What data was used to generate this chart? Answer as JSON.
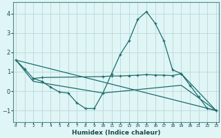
{
  "xlabel": "Humidex (Indice chaleur)",
  "bg_color": "#e0f5f5",
  "grid_color": "#b8d8d8",
  "line_color": "#1a6b6b",
  "line1_x": [
    0,
    1,
    2,
    3,
    4,
    5,
    6,
    7,
    8,
    9,
    10,
    11,
    12,
    13,
    14,
    15,
    16,
    17,
    18,
    19,
    20,
    21,
    22,
    23
  ],
  "line1_y": [
    1.6,
    1.15,
    0.65,
    0.5,
    0.2,
    -0.05,
    -0.1,
    -0.6,
    -0.9,
    -0.9,
    -0.1,
    0.9,
    1.9,
    2.6,
    3.7,
    4.1,
    3.5,
    2.6,
    1.1,
    0.9,
    0.3,
    -0.3,
    -0.9,
    -1.0
  ],
  "line2_x": [
    2,
    3,
    10,
    11,
    12,
    13,
    14,
    15,
    16,
    17,
    18,
    19,
    23
  ],
  "line2_y": [
    0.65,
    0.7,
    0.75,
    0.78,
    0.78,
    0.8,
    0.82,
    0.85,
    0.83,
    0.82,
    0.8,
    0.9,
    -1.0
  ],
  "line3_x": [
    0,
    23
  ],
  "line3_y": [
    1.6,
    -1.0
  ],
  "line4_x": [
    0,
    2,
    10,
    19,
    23
  ],
  "line4_y": [
    1.6,
    0.5,
    -0.1,
    0.3,
    -1.0
  ],
  "xlim": [
    -0.3,
    23.3
  ],
  "ylim": [
    -1.6,
    4.6
  ],
  "yticks": [
    -1,
    0,
    1,
    2,
    3,
    4
  ],
  "xticks": [
    0,
    1,
    2,
    3,
    4,
    5,
    6,
    7,
    8,
    9,
    10,
    11,
    12,
    13,
    14,
    15,
    16,
    17,
    18,
    19,
    20,
    21,
    22,
    23
  ]
}
